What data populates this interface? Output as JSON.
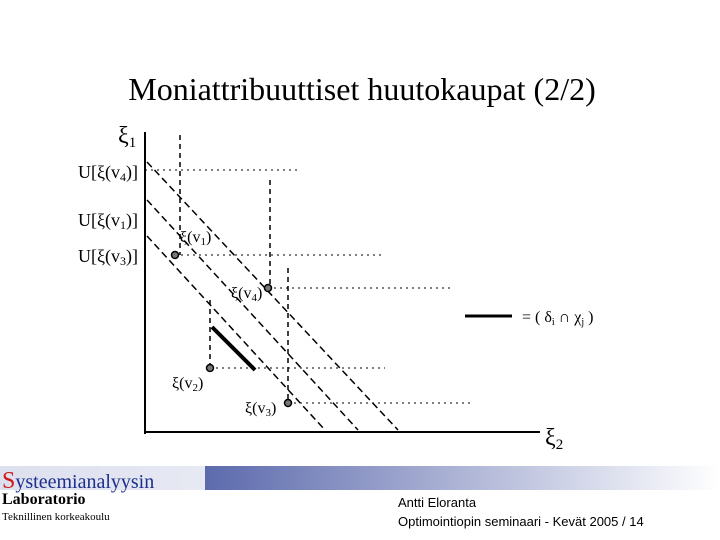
{
  "title": "Moniattribuuttiset huutokaupat (2/2)",
  "axes": {
    "y": {
      "base": "ξ",
      "sub": "1"
    },
    "x": {
      "base": "ξ",
      "sub": "2"
    }
  },
  "y_labels": [
    {
      "base": "U[ξ(v",
      "sub": "4",
      "tail": ")]"
    },
    {
      "base": "U[ξ(v",
      "sub": "1",
      "tail": ")]"
    },
    {
      "base": "U[ξ(v",
      "sub": "3",
      "tail": ")]"
    }
  ],
  "points": [
    {
      "base": "ξ(v",
      "sub": "1",
      "tail": ")"
    },
    {
      "base": "ξ(v",
      "sub": "4",
      "tail": ")"
    },
    {
      "base": "ξ(v",
      "sub": "2",
      "tail": ")"
    },
    {
      "base": "ξ(v",
      "sub": "3",
      "tail": ")"
    }
  ],
  "legend": {
    "p1": "= ( δ",
    "s1": "i",
    "p2": " ∩ χ",
    "s2": "j",
    "p3": " )"
  },
  "footer": {
    "logo_initial": "S",
    "logo_rest": "ysteemianalyysin",
    "logo_line2": "Laboratorio",
    "logo_line3": "Teknillinen korkeakoulu",
    "author": "Antti Eloranta",
    "event": "Optimointiopin seminaari - Kevät 2005 / 14"
  }
}
